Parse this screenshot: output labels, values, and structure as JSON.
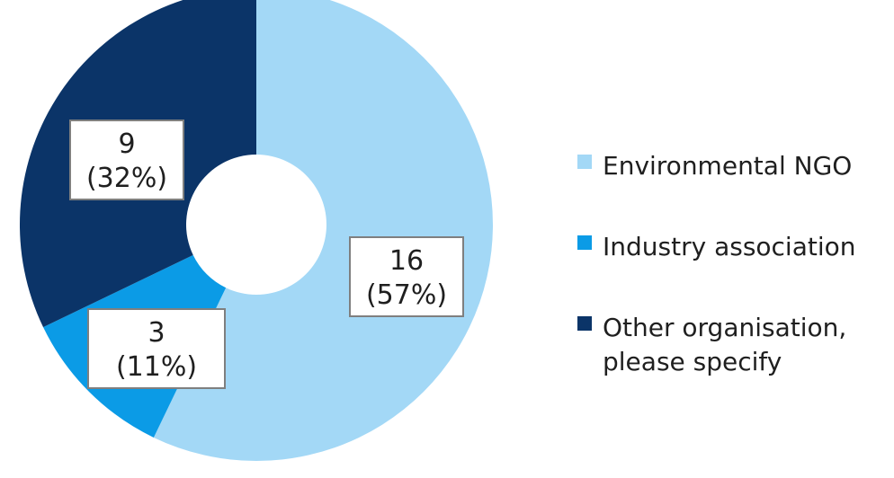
{
  "chart_data": {
    "type": "pie",
    "donut": true,
    "title": "",
    "categories": [
      "Environmental NGO",
      "Industry association",
      "Other organisation, please specify"
    ],
    "values": [
      16,
      3,
      9
    ],
    "percent_labels": [
      "57%",
      "11%",
      "32%"
    ],
    "data_labels": [
      {
        "value": "16",
        "percent": "(57%)"
      },
      {
        "value": "3",
        "percent": "(11%)"
      },
      {
        "value": "9",
        "percent": "(32%)"
      }
    ],
    "colors": [
      "#a3d8f6",
      "#0b9be6",
      "#0b3468"
    ],
    "legend": {
      "position": "right",
      "entries": [
        {
          "lines": [
            "Environmental NGO"
          ],
          "color": "#a3d8f6"
        },
        {
          "lines": [
            "Industry association"
          ],
          "color": "#0b9be6"
        },
        {
          "lines": [
            "Other organisation,",
            "please specify"
          ],
          "color": "#0b3468"
        }
      ]
    }
  }
}
